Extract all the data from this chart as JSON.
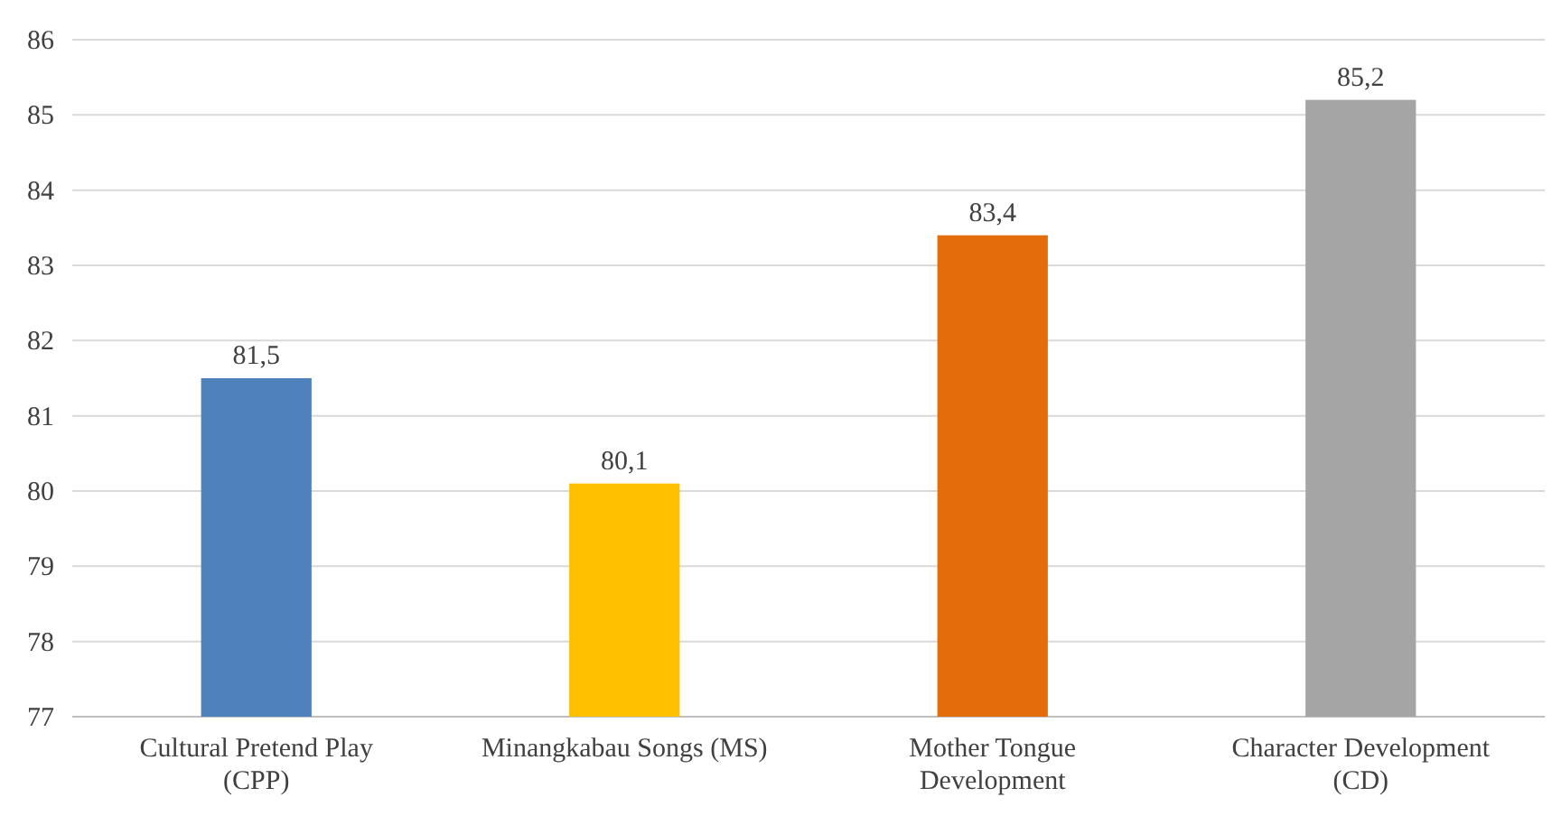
{
  "chart_data": {
    "type": "bar",
    "categories": [
      "Cultural Pretend Play (CPP)",
      "Minangkabau Songs (MS)",
      "Mother Tongue Development",
      "Character Development (CD)"
    ],
    "values": [
      81.5,
      80.1,
      83.4,
      85.2
    ],
    "colors": [
      "#4f81bd",
      "#ffc000",
      "#e46c0a",
      "#a5a5a5"
    ],
    "value_labels": [
      "81,5",
      "80,1",
      "83,4",
      "85,2"
    ],
    "ylim": [
      77,
      86
    ],
    "yticks": [
      77,
      78,
      79,
      80,
      81,
      82,
      83,
      84,
      85,
      86
    ],
    "grid": "y"
  }
}
